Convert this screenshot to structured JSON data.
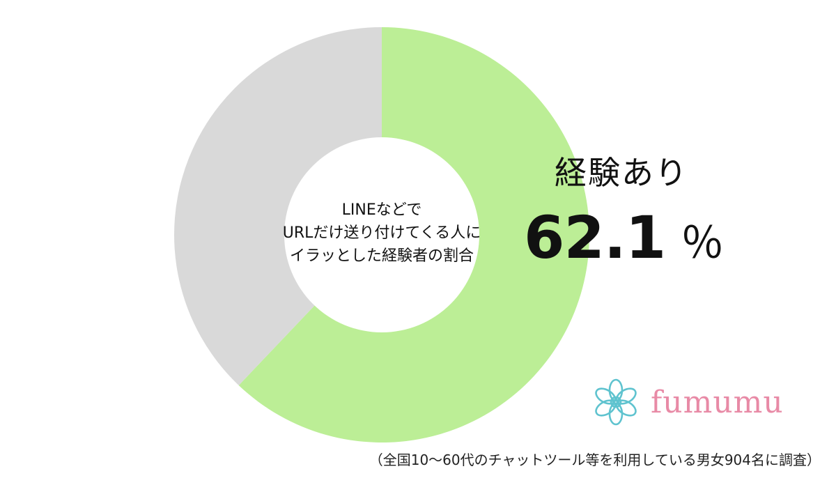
{
  "chart_data": {
    "type": "pie",
    "style": "donut",
    "center_title_lines": [
      "LINEなどで",
      "URLだけ送り付けてくる人に",
      "イラッとした経験者の割合"
    ],
    "slices": [
      {
        "label": "経験あり",
        "value": 62.1,
        "color": "#bcee96"
      },
      {
        "label": "",
        "value": 37.9,
        "color": "#d9d9d9"
      }
    ],
    "callout": {
      "label": "経験あり",
      "value": "62.1",
      "unit": "％"
    },
    "note": "（全国10～60代のチャットツール等を利用している男女904名に調査）"
  },
  "brand": {
    "name": "fumumu",
    "icon": "flower-logo-icon",
    "color": "#e88aa6",
    "icon_color": "#5fc3cf"
  }
}
